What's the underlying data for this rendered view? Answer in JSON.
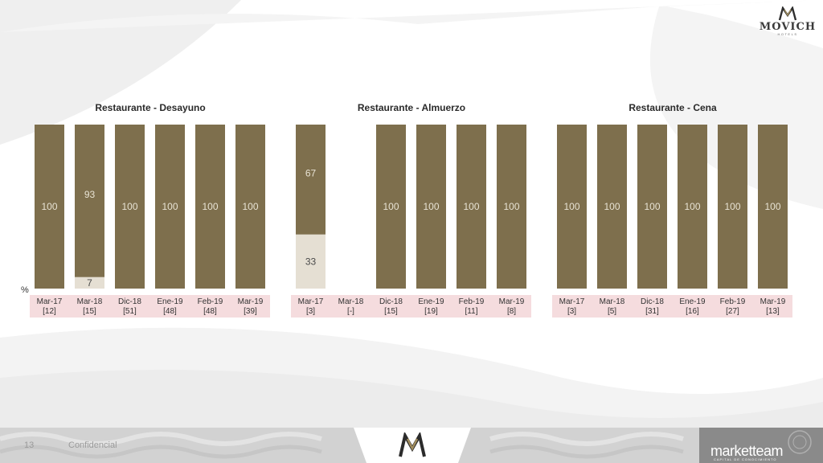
{
  "colors": {
    "bar_main": "#7e6f4d",
    "bar_secondary": "#e5dfd3",
    "label_band": "#f5dcde",
    "footer_gray": "#d4d4d4"
  },
  "logo": {
    "name": "MOVICH",
    "sub": "HOTELS"
  },
  "percent_label": "%",
  "footer": {
    "page_number": "13",
    "confidential": "Confidencial",
    "brand": "marketteam",
    "brand_sub": "CAPITAL DE CONOCIMIENTO"
  },
  "chart_data": [
    {
      "type": "bar",
      "stacked": true,
      "title": "Restaurante - Desayuno",
      "ylim": [
        0,
        100
      ],
      "categories": [
        "Mar-17",
        "Mar-18",
        "Dic-18",
        "Ene-19",
        "Feb-19",
        "Mar-19"
      ],
      "base_sizes": [
        "[12]",
        "[15]",
        "[51]",
        "[48]",
        "[48]",
        "[39]"
      ],
      "series": [
        {
          "values": [
            0,
            7,
            0,
            0,
            0,
            0
          ]
        },
        {
          "values": [
            100,
            93,
            100,
            100,
            100,
            100
          ]
        }
      ]
    },
    {
      "type": "bar",
      "stacked": true,
      "title": "Restaurante - Almuerzo",
      "ylim": [
        0,
        100
      ],
      "categories": [
        "Mar-17",
        "Mar-18",
        "Dic-18",
        "Ene-19",
        "Feb-19",
        "Mar-19"
      ],
      "base_sizes": [
        "[3]",
        "[-]",
        "[15]",
        "[19]",
        "[11]",
        "[8]"
      ],
      "series": [
        {
          "values": [
            33,
            null,
            0,
            0,
            0,
            0
          ]
        },
        {
          "values": [
            67,
            null,
            100,
            100,
            100,
            100
          ]
        }
      ]
    },
    {
      "type": "bar",
      "stacked": true,
      "title": "Restaurante - Cena",
      "ylim": [
        0,
        100
      ],
      "categories": [
        "Mar-17",
        "Mar-18",
        "Dic-18",
        "Ene-19",
        "Feb-19",
        "Mar-19"
      ],
      "base_sizes": [
        "[3]",
        "[5]",
        "[31]",
        "[16]",
        "[27]",
        "[13]"
      ],
      "series": [
        {
          "values": [
            0,
            0,
            0,
            0,
            0,
            0
          ]
        },
        {
          "values": [
            100,
            100,
            100,
            100,
            100,
            100
          ]
        }
      ]
    }
  ]
}
